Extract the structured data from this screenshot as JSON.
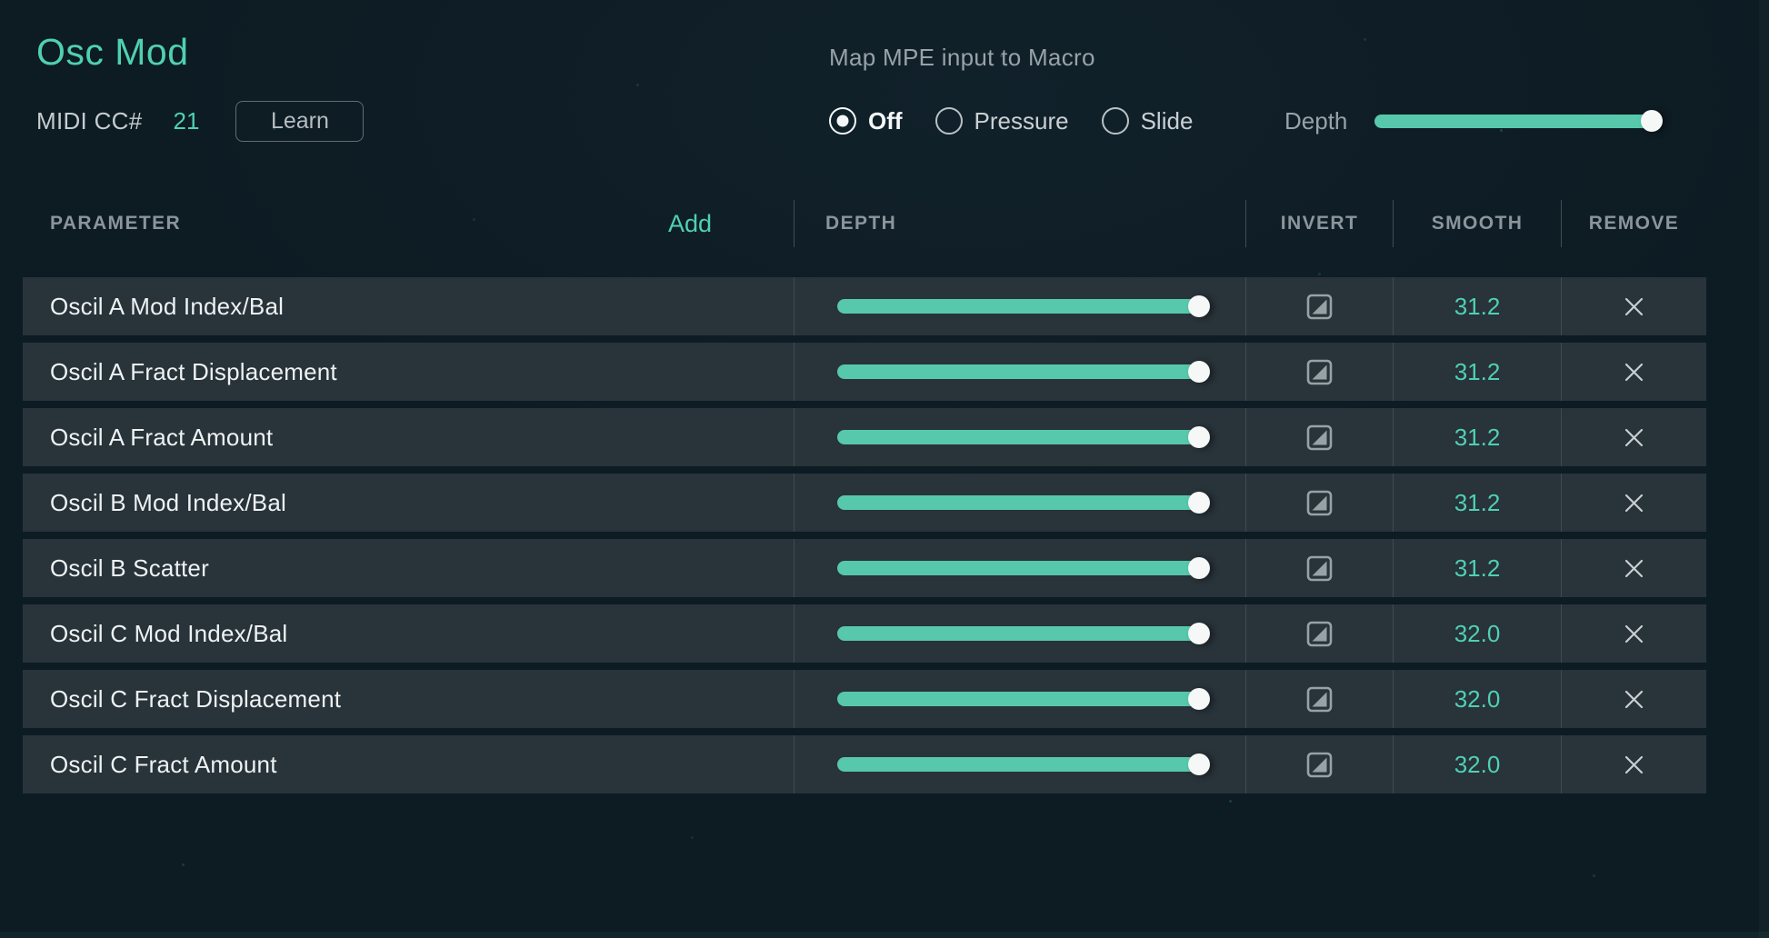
{
  "colors": {
    "accent": "#4fd0b2",
    "slider_fill": "#57c8ab",
    "background": "#0d1b23",
    "row_background": "#28333a"
  },
  "header": {
    "title": "Osc Mod",
    "midi_cc_label": "MIDI CC#",
    "midi_cc_value": "21",
    "learn_button": "Learn"
  },
  "mpe": {
    "label": "Map MPE input to Macro",
    "options": [
      {
        "label": "Off",
        "selected": true
      },
      {
        "label": "Pressure",
        "selected": false
      },
      {
        "label": "Slide",
        "selected": false
      }
    ],
    "depth_label": "Depth",
    "depth_value_pct": 100
  },
  "table": {
    "columns": {
      "parameter": "PARAMETER",
      "add": "Add",
      "depth": "DEPTH",
      "invert": "INVERT",
      "smooth": "SMOOTH",
      "remove": "REMOVE"
    },
    "rows": [
      {
        "parameter": "Oscil A Mod Index/Bal",
        "depth_pct": 97,
        "smooth": "31.2"
      },
      {
        "parameter": "Oscil A Fract Displacement",
        "depth_pct": 97,
        "smooth": "31.2"
      },
      {
        "parameter": "Oscil A Fract Amount",
        "depth_pct": 97,
        "smooth": "31.2"
      },
      {
        "parameter": "Oscil B Mod Index/Bal",
        "depth_pct": 97,
        "smooth": "31.2"
      },
      {
        "parameter": "Oscil B Scatter",
        "depth_pct": 97,
        "smooth": "31.2"
      },
      {
        "parameter": "Oscil C Mod Index/Bal",
        "depth_pct": 97,
        "smooth": "32.0"
      },
      {
        "parameter": "Oscil C Fract Displacement",
        "depth_pct": 97,
        "smooth": "32.0"
      },
      {
        "parameter": "Oscil C Fract Amount",
        "depth_pct": 97,
        "smooth": "32.0"
      }
    ]
  }
}
